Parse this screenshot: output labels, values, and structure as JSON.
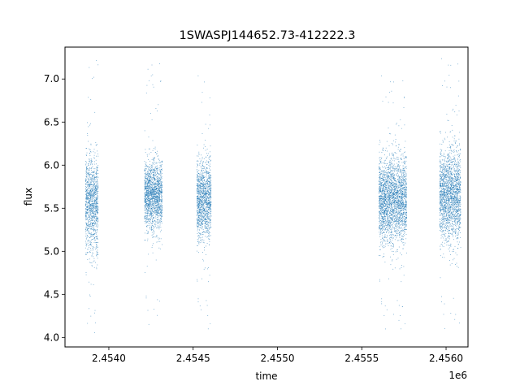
{
  "chart_data": {
    "type": "scatter",
    "title": "1SWASPJ144652.73-412222.3",
    "xlabel": "time",
    "ylabel": "flux",
    "x_offset_label": "1e6",
    "x_tick_labels": [
      "2.4540",
      "2.4545",
      "2.4550",
      "2.4555",
      "2.4560"
    ],
    "x_ticks": [
      2454000,
      2454500,
      2455000,
      2455500,
      2456000
    ],
    "y_tick_labels": [
      "4.0",
      "4.5",
      "5.0",
      "5.5",
      "6.0",
      "6.5",
      "7.0"
    ],
    "y_ticks": [
      4.0,
      4.5,
      5.0,
      5.5,
      6.0,
      6.5,
      7.0
    ],
    "xlim": [
      2453740,
      2456130
    ],
    "ylim": [
      3.89,
      7.37
    ],
    "grid": false,
    "legend": "none",
    "point_color": "#1f77b4",
    "series": [
      {
        "segments": [
          {
            "x_start": 2453860,
            "x_end": 2453935,
            "y_center": 5.55,
            "y_spread": 0.28,
            "y_min": 4.05,
            "y_max": 7.3,
            "dense": [
              2453860,
              2453935
            ]
          },
          {
            "x_start": 2454210,
            "x_end": 2454315,
            "y_center": 5.65,
            "y_spread": 0.2,
            "y_min": 4.1,
            "y_max": 7.25,
            "dense": [
              2454210,
              2454315
            ]
          },
          {
            "x_start": 2454520,
            "x_end": 2454605,
            "y_center": 5.6,
            "y_spread": 0.23,
            "y_min": 4.05,
            "y_max": 7.05,
            "dense": [
              2454520,
              2454605
            ]
          },
          {
            "x_start": 2455600,
            "x_end": 2455765,
            "y_center": 5.6,
            "y_spread": 0.25,
            "y_min": 4.05,
            "y_max": 7.05,
            "dense": [
              2455600,
              2455765
            ]
          },
          {
            "x_start": 2455960,
            "x_end": 2456085,
            "y_center": 5.65,
            "y_spread": 0.27,
            "y_min": 4.05,
            "y_max": 7.25,
            "dense": [
              2455960,
              2456085
            ]
          }
        ]
      }
    ]
  }
}
